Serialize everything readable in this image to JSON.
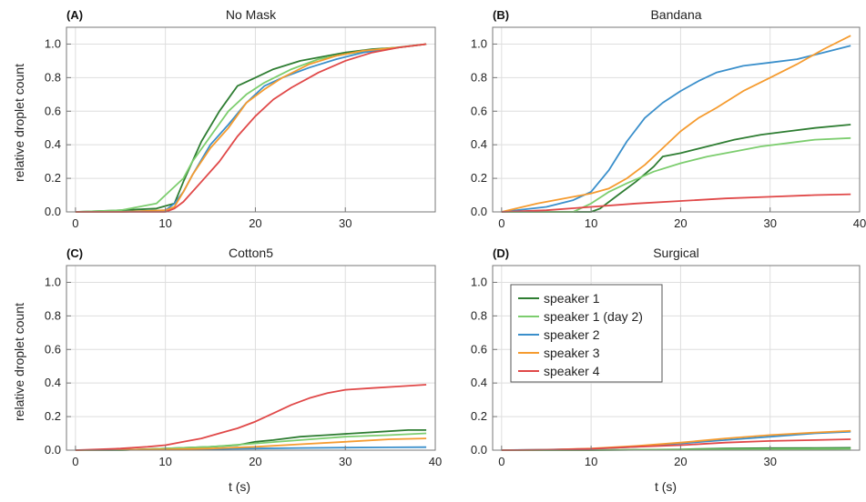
{
  "figure": {
    "ylabel_left": "relative droplet count",
    "xlabel": "t (s)",
    "legend": {
      "entries": [
        {
          "name": "speaker 1",
          "color": "#2e7d32"
        },
        {
          "name": "speaker 1 (day 2)",
          "color": "#7ccd6e"
        },
        {
          "name": "speaker 2",
          "color": "#3a8fcb"
        },
        {
          "name": "speaker 3",
          "color": "#f59b2f"
        },
        {
          "name": "speaker 4",
          "color": "#e04848"
        }
      ]
    }
  },
  "chart_data": [
    {
      "type": "line",
      "panel": "(A)",
      "title": "No Mask",
      "xlabel": "",
      "ylabel": "relative droplet count",
      "xlim": [
        -1,
        40
      ],
      "ylim": [
        0,
        1.1
      ],
      "xticks": [
        0,
        10,
        20,
        30
      ],
      "yticks": [
        0.0,
        0.2,
        0.4,
        0.6,
        0.8,
        1.0
      ],
      "grid": true,
      "series": [
        {
          "name": "speaker 1",
          "color": "#2e7d32",
          "x": [
            0,
            5,
            9,
            11,
            12,
            14,
            16,
            18,
            20,
            22,
            25,
            28,
            30,
            33,
            36,
            39
          ],
          "y": [
            0,
            0.01,
            0.02,
            0.05,
            0.18,
            0.42,
            0.6,
            0.75,
            0.8,
            0.85,
            0.9,
            0.93,
            0.95,
            0.97,
            0.98,
            1.0
          ]
        },
        {
          "name": "speaker 1 (day 2)",
          "color": "#7ccd6e",
          "x": [
            0,
            5,
            9,
            10,
            12,
            13,
            15,
            17,
            19,
            21,
            24,
            27,
            30,
            34,
            39
          ],
          "y": [
            0,
            0.01,
            0.05,
            0.1,
            0.2,
            0.3,
            0.45,
            0.6,
            0.7,
            0.77,
            0.85,
            0.91,
            0.94,
            0.97,
            1.0
          ]
        },
        {
          "name": "speaker 2",
          "color": "#3a8fcb",
          "x": [
            0,
            5,
            10,
            11,
            12,
            13,
            15,
            17,
            19,
            21,
            23,
            26,
            29,
            32,
            36,
            39
          ],
          "y": [
            0,
            0.0,
            0.01,
            0.05,
            0.12,
            0.22,
            0.4,
            0.52,
            0.65,
            0.75,
            0.8,
            0.86,
            0.91,
            0.95,
            0.98,
            1.0
          ]
        },
        {
          "name": "speaker 3",
          "color": "#f59b2f",
          "x": [
            0,
            5,
            10,
            11,
            12,
            13,
            15,
            17,
            19,
            21,
            23,
            26,
            29,
            32,
            36,
            39
          ],
          "y": [
            0,
            0.0,
            0.01,
            0.03,
            0.12,
            0.22,
            0.38,
            0.5,
            0.65,
            0.73,
            0.8,
            0.88,
            0.93,
            0.96,
            0.98,
            1.0
          ]
        },
        {
          "name": "speaker 4",
          "color": "#e04848",
          "x": [
            0,
            5,
            10,
            11,
            12,
            14,
            16,
            18,
            20,
            22,
            24,
            27,
            30,
            33,
            36,
            39
          ],
          "y": [
            0,
            0.0,
            0.0,
            0.02,
            0.06,
            0.18,
            0.3,
            0.45,
            0.57,
            0.67,
            0.74,
            0.83,
            0.9,
            0.95,
            0.98,
            1.0
          ]
        }
      ]
    },
    {
      "type": "line",
      "panel": "(B)",
      "title": "Bandana",
      "xlabel": "",
      "ylabel": "",
      "xlim": [
        -1,
        40
      ],
      "ylim": [
        0,
        1.1
      ],
      "xticks": [
        0,
        10,
        20,
        30,
        40
      ],
      "yticks": [
        0.0,
        0.2,
        0.4,
        0.6,
        0.8,
        1.0
      ],
      "grid": true,
      "series": [
        {
          "name": "speaker 1",
          "color": "#2e7d32",
          "x": [
            0,
            10,
            11,
            13,
            15,
            17,
            18,
            20,
            23,
            26,
            29,
            32,
            35,
            39
          ],
          "y": [
            0,
            0.0,
            0.02,
            0.1,
            0.18,
            0.27,
            0.33,
            0.35,
            0.39,
            0.43,
            0.46,
            0.48,
            0.5,
            0.52
          ]
        },
        {
          "name": "speaker 1 (day 2)",
          "color": "#7ccd6e",
          "x": [
            0,
            8,
            10,
            12,
            14,
            17,
            20,
            23,
            26,
            29,
            32,
            35,
            39
          ],
          "y": [
            0,
            0.0,
            0.05,
            0.12,
            0.17,
            0.24,
            0.29,
            0.33,
            0.36,
            0.39,
            0.41,
            0.43,
            0.44
          ]
        },
        {
          "name": "speaker 2",
          "color": "#3a8fcb",
          "x": [
            0,
            5,
            8,
            10,
            12,
            14,
            16,
            18,
            20,
            22,
            24,
            27,
            30,
            33,
            36,
            39
          ],
          "y": [
            0,
            0.03,
            0.07,
            0.12,
            0.25,
            0.42,
            0.56,
            0.65,
            0.72,
            0.78,
            0.83,
            0.87,
            0.89,
            0.91,
            0.95,
            0.99
          ]
        },
        {
          "name": "speaker 3",
          "color": "#f59b2f",
          "x": [
            0,
            4,
            8,
            10,
            12,
            14,
            16,
            18,
            20,
            22,
            24,
            27,
            30,
            33,
            36,
            39
          ],
          "y": [
            0,
            0.05,
            0.09,
            0.11,
            0.14,
            0.2,
            0.28,
            0.38,
            0.48,
            0.56,
            0.62,
            0.72,
            0.8,
            0.88,
            0.97,
            1.05
          ]
        },
        {
          "name": "speaker 4",
          "color": "#e04848",
          "x": [
            0,
            5,
            10,
            15,
            20,
            25,
            30,
            35,
            39
          ],
          "y": [
            0,
            0.01,
            0.03,
            0.05,
            0.065,
            0.08,
            0.09,
            0.1,
            0.105
          ]
        }
      ]
    },
    {
      "type": "line",
      "panel": "(C)",
      "title": "Cotton5",
      "xlabel": "t (s)",
      "ylabel": "relative droplet count",
      "xlim": [
        -1,
        40
      ],
      "ylim": [
        0,
        1.1
      ],
      "xticks": [
        0,
        10,
        20,
        30,
        40
      ],
      "yticks": [
        0.0,
        0.2,
        0.4,
        0.6,
        0.8,
        1.0
      ],
      "grid": true,
      "series": [
        {
          "name": "speaker 1",
          "color": "#2e7d32",
          "x": [
            0,
            5,
            10,
            15,
            18,
            20,
            22,
            25,
            28,
            31,
            34,
            37,
            39
          ],
          "y": [
            0,
            0.0,
            0.01,
            0.02,
            0.03,
            0.05,
            0.06,
            0.08,
            0.09,
            0.1,
            0.11,
            0.12,
            0.12
          ]
        },
        {
          "name": "speaker 1 (day 2)",
          "color": "#7ccd6e",
          "x": [
            0,
            5,
            10,
            15,
            20,
            25,
            30,
            35,
            39
          ],
          "y": [
            0,
            0.0,
            0.01,
            0.02,
            0.04,
            0.06,
            0.08,
            0.09,
            0.1
          ]
        },
        {
          "name": "speaker 2",
          "color": "#3a8fcb",
          "x": [
            0,
            10,
            20,
            25,
            30,
            35,
            39
          ],
          "y": [
            0,
            0.003,
            0.01,
            0.013,
            0.015,
            0.017,
            0.018
          ]
        },
        {
          "name": "speaker 3",
          "color": "#f59b2f",
          "x": [
            0,
            10,
            15,
            20,
            25,
            30,
            35,
            39
          ],
          "y": [
            0,
            0.005,
            0.01,
            0.02,
            0.035,
            0.05,
            0.065,
            0.07
          ]
        },
        {
          "name": "speaker 4",
          "color": "#e04848",
          "x": [
            0,
            5,
            8,
            10,
            12,
            14,
            16,
            18,
            20,
            22,
            24,
            26,
            28,
            30,
            33,
            36,
            39
          ],
          "y": [
            0,
            0.01,
            0.02,
            0.03,
            0.05,
            0.07,
            0.1,
            0.13,
            0.17,
            0.22,
            0.27,
            0.31,
            0.34,
            0.36,
            0.37,
            0.38,
            0.39
          ]
        }
      ]
    },
    {
      "type": "line",
      "panel": "(D)",
      "title": "Surgical",
      "xlabel": "t (s)",
      "ylabel": "",
      "xlim": [
        -1,
        40
      ],
      "ylim": [
        0,
        1.1
      ],
      "xticks": [
        0,
        10,
        20,
        30
      ],
      "yticks": [
        0.0,
        0.2,
        0.4,
        0.6,
        0.8,
        1.0
      ],
      "grid": true,
      "legend_position": "top-left",
      "series": [
        {
          "name": "speaker 1",
          "color": "#2e7d32",
          "x": [
            0,
            10,
            20,
            25,
            30,
            35,
            39
          ],
          "y": [
            0,
            0.0,
            0.005,
            0.01,
            0.012,
            0.013,
            0.014
          ]
        },
        {
          "name": "speaker 1 (day 2)",
          "color": "#7ccd6e",
          "x": [
            0,
            10,
            20,
            25,
            30,
            35,
            39
          ],
          "y": [
            0,
            0.001,
            0.003,
            0.005,
            0.006,
            0.007,
            0.008
          ]
        },
        {
          "name": "speaker 2",
          "color": "#3a8fcb",
          "x": [
            0,
            5,
            10,
            15,
            20,
            25,
            30,
            35,
            39
          ],
          "y": [
            0,
            0.003,
            0.008,
            0.02,
            0.04,
            0.06,
            0.08,
            0.1,
            0.11
          ]
        },
        {
          "name": "speaker 3",
          "color": "#f59b2f",
          "x": [
            0,
            5,
            10,
            15,
            20,
            25,
            30,
            35,
            39
          ],
          "y": [
            0,
            0.002,
            0.01,
            0.025,
            0.045,
            0.07,
            0.09,
            0.105,
            0.115
          ]
        },
        {
          "name": "speaker 4",
          "color": "#e04848",
          "x": [
            0,
            5,
            10,
            15,
            20,
            25,
            30,
            35,
            39
          ],
          "y": [
            0,
            0.002,
            0.008,
            0.02,
            0.03,
            0.045,
            0.055,
            0.06,
            0.065
          ]
        }
      ]
    }
  ]
}
